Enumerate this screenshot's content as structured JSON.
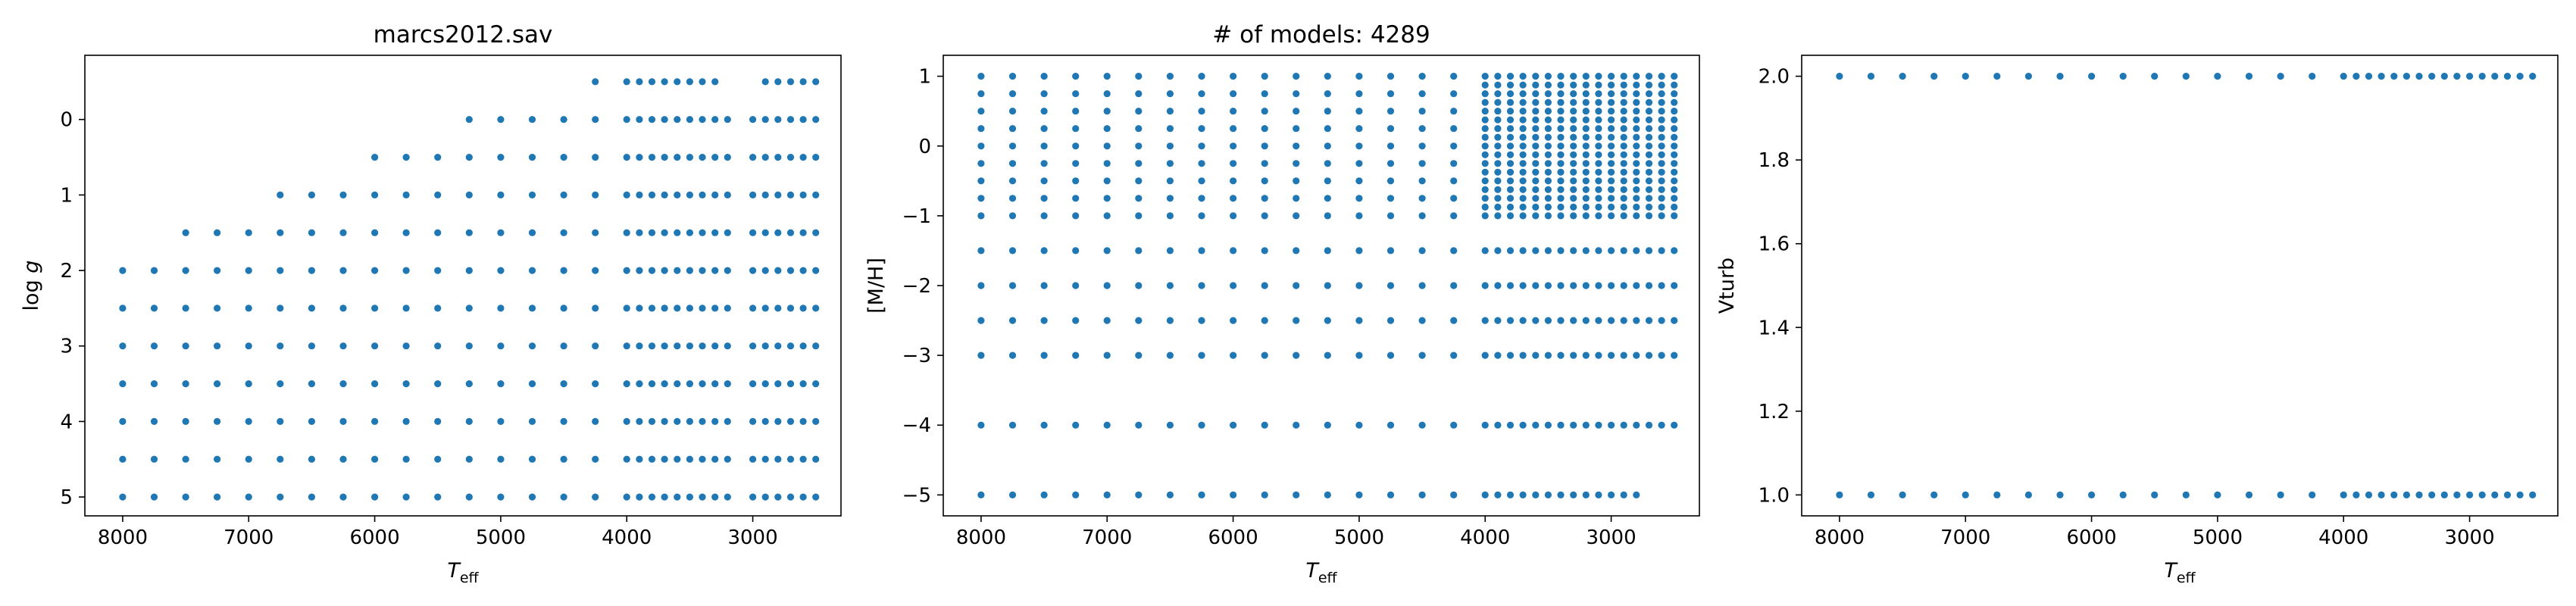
{
  "chart_data": [
    {
      "type": "scatter",
      "title": "marcs2012.sav",
      "xlabel": "T_eff",
      "ylabel": "log g",
      "x_axis_inverted": true,
      "y_axis_inverted": true,
      "xlim": [
        8300,
        2300
      ],
      "ylim": [
        5.25,
        -0.85
      ],
      "xticks": [
        8000,
        7000,
        6000,
        5000,
        4000,
        3000
      ],
      "xtick_labels": [
        "8000",
        "7000",
        "6000",
        "5000",
        "4000",
        "3000"
      ],
      "yticks": [
        0,
        1,
        2,
        3,
        4,
        5
      ],
      "ytick_labels": [
        "0",
        "1",
        "2",
        "3",
        "4",
        "5"
      ],
      "color": "#1f77b4",
      "series": [
        {
          "x": 8000,
          "y": [
            2,
            2.5,
            3,
            3.5,
            4,
            4.5,
            5
          ]
        },
        {
          "x": 7750,
          "y": [
            2,
            2.5,
            3,
            3.5,
            4,
            4.5,
            5
          ]
        },
        {
          "x": 7500,
          "y": [
            1.5,
            2,
            2.5,
            3,
            3.5,
            4,
            4.5,
            5
          ]
        },
        {
          "x": 7250,
          "y": [
            1.5,
            2,
            2.5,
            3,
            3.5,
            4,
            4.5,
            5
          ]
        },
        {
          "x": 7000,
          "y": [
            1.5,
            2,
            2.5,
            3,
            3.5,
            4,
            4.5,
            5
          ]
        },
        {
          "x": 6750,
          "y": [
            1,
            1.5,
            2,
            2.5,
            3,
            3.5,
            4,
            4.5,
            5
          ]
        },
        {
          "x": 6500,
          "y": [
            1,
            1.5,
            2,
            2.5,
            3,
            3.5,
            4,
            4.5,
            5
          ]
        },
        {
          "x": 6250,
          "y": [
            1,
            1.5,
            2,
            2.5,
            3,
            3.5,
            4,
            4.5,
            5
          ]
        },
        {
          "x": 6000,
          "y": [
            0.5,
            1,
            1.5,
            2,
            2.5,
            3,
            3.5,
            4,
            4.5,
            5
          ]
        },
        {
          "x": 5750,
          "y": [
            0.5,
            1,
            1.5,
            2,
            2.5,
            3,
            3.5,
            4,
            4.5,
            5
          ]
        },
        {
          "x": 5500,
          "y": [
            0.5,
            1,
            1.5,
            2,
            2.5,
            3,
            3.5,
            4,
            4.5,
            5
          ]
        },
        {
          "x": 5250,
          "y": [
            0,
            0.5,
            1,
            1.5,
            2,
            2.5,
            3,
            3.5,
            4,
            4.5,
            5
          ]
        },
        {
          "x": 5000,
          "y": [
            0,
            0.5,
            1,
            1.5,
            2,
            2.5,
            3,
            3.5,
            4,
            4.5,
            5
          ]
        },
        {
          "x": 4750,
          "y": [
            0,
            0.5,
            1,
            1.5,
            2,
            2.5,
            3,
            3.5,
            4,
            4.5,
            5
          ]
        },
        {
          "x": 4500,
          "y": [
            0,
            0.5,
            1,
            1.5,
            2,
            2.5,
            3,
            3.5,
            4,
            4.5,
            5
          ]
        },
        {
          "x": 4250,
          "y": [
            -0.5,
            0,
            0.5,
            1,
            1.5,
            2,
            2.5,
            3,
            3.5,
            4,
            4.5,
            5
          ]
        },
        {
          "x": 4000,
          "y": [
            -0.5,
            0,
            0.5,
            1,
            1.5,
            2,
            2.5,
            3,
            3.5,
            4,
            4.5,
            5
          ]
        },
        {
          "x": 3900,
          "y": [
            -0.5,
            0,
            0.5,
            1,
            1.5,
            2,
            2.5,
            3,
            3.5,
            4,
            4.5,
            5
          ]
        },
        {
          "x": 3800,
          "y": [
            -0.5,
            0,
            0.5,
            1,
            1.5,
            2,
            2.5,
            3,
            3.5,
            4,
            4.5,
            5
          ]
        },
        {
          "x": 3700,
          "y": [
            -0.5,
            0,
            0.5,
            1,
            1.5,
            2,
            2.5,
            3,
            3.5,
            4,
            4.5,
            5
          ]
        },
        {
          "x": 3600,
          "y": [
            -0.5,
            0,
            0.5,
            1,
            1.5,
            2,
            2.5,
            3,
            3.5,
            4,
            4.5,
            5
          ]
        },
        {
          "x": 3500,
          "y": [
            -0.5,
            0,
            0.5,
            1,
            1.5,
            2,
            2.5,
            3,
            3.5,
            4,
            4.5,
            5
          ]
        },
        {
          "x": 3400,
          "y": [
            -0.5,
            0,
            0.5,
            1,
            1.5,
            2,
            2.5,
            3,
            3.5,
            4,
            4.5,
            5
          ]
        },
        {
          "x": 3300,
          "y": [
            -0.5,
            0,
            0.5,
            1,
            1.5,
            2,
            2.5,
            3,
            3.5,
            4,
            4.5,
            5
          ]
        },
        {
          "x": 3200,
          "y": [
            0,
            0.5,
            1,
            1.5,
            2,
            2.5,
            3,
            3.5,
            4,
            4.5,
            5
          ]
        },
        {
          "x": 3000,
          "y": [
            0,
            0.5,
            1,
            1.5,
            2,
            2.5,
            3,
            3.5,
            4,
            4.5,
            5
          ]
        },
        {
          "x": 2900,
          "y": [
            -0.5,
            0,
            0.5,
            1,
            1.5,
            2,
            2.5,
            3,
            3.5,
            4,
            4.5,
            5
          ]
        },
        {
          "x": 2800,
          "y": [
            -0.5,
            0,
            0.5,
            1,
            1.5,
            2,
            2.5,
            3,
            3.5,
            4,
            4.5,
            5
          ]
        },
        {
          "x": 2700,
          "y": [
            -0.5,
            0,
            0.5,
            1,
            1.5,
            2,
            2.5,
            3,
            3.5,
            4,
            4.5,
            5
          ]
        },
        {
          "x": 2600,
          "y": [
            -0.5,
            0,
            0.5,
            1,
            1.5,
            2,
            2.5,
            3,
            3.5,
            4,
            4.5,
            5
          ]
        },
        {
          "x": 2500,
          "y": [
            -0.5,
            0,
            0.5,
            1,
            1.5,
            2,
            2.5,
            3,
            3.5,
            4,
            4.5,
            5
          ]
        }
      ]
    },
    {
      "type": "scatter",
      "title": "# of models: 4289",
      "xlabel": "T_eff",
      "ylabel": "[M/H]",
      "x_axis_inverted": true,
      "xlim": [
        8300,
        2300
      ],
      "ylim": [
        -5.3,
        1.3
      ],
      "xticks": [
        8000,
        7000,
        6000,
        5000,
        4000,
        3000
      ],
      "xtick_labels": [
        "8000",
        "7000",
        "6000",
        "5000",
        "4000",
        "3000"
      ],
      "yticks": [
        1,
        0,
        -1,
        -2,
        -3,
        -4,
        -5
      ],
      "ytick_labels": [
        "1",
        "0",
        "−1",
        "−2",
        "−3",
        "−4",
        "−5"
      ],
      "color": "#1f77b4",
      "x_values": [
        8000,
        7750,
        7500,
        7250,
        7000,
        6750,
        6500,
        6250,
        6000,
        5750,
        5500,
        5250,
        5000,
        4750,
        4500,
        4250,
        4000,
        3900,
        3800,
        3700,
        3600,
        3500,
        3400,
        3300,
        3200,
        3100,
        3000,
        2900,
        2800,
        2700,
        2600,
        2500
      ],
      "coarse_x_max": 4250,
      "coarse_mh": [
        1,
        0.75,
        0.5,
        0.25,
        0,
        -0.25,
        -0.5,
        -0.75,
        -1,
        -1.5,
        -2,
        -2.5,
        -3,
        -4,
        -5
      ],
      "fine_mh": [
        1,
        0.75,
        0.5,
        0.25,
        0,
        -0.25,
        -0.5,
        -0.75,
        -1,
        -1.5,
        -2,
        -2.5,
        -3,
        -4
      ],
      "fine_extra_mh": [
        0.875,
        0.625,
        0.375,
        0.125,
        -0.125,
        -0.375,
        -0.625,
        -0.875
      ],
      "mh_minus5_x": [
        4000,
        3900,
        3800,
        3700,
        3600,
        3500,
        3400,
        3300,
        3200,
        3100,
        3000,
        2900,
        2800
      ]
    },
    {
      "type": "scatter",
      "title": "",
      "xlabel": "T_eff",
      "ylabel": "Vturb",
      "x_axis_inverted": true,
      "xlim": [
        8300,
        2300
      ],
      "ylim": [
        0.95,
        2.05
      ],
      "xticks": [
        8000,
        7000,
        6000,
        5000,
        4000,
        3000
      ],
      "xtick_labels": [
        "8000",
        "7000",
        "6000",
        "5000",
        "4000",
        "3000"
      ],
      "yticks": [
        1.0,
        1.2,
        1.4,
        1.6,
        1.8,
        2.0
      ],
      "ytick_labels": [
        "1.0",
        "1.2",
        "1.4",
        "1.6",
        "1.8",
        "2.0"
      ],
      "color": "#1f77b4",
      "x_values": [
        8000,
        7750,
        7500,
        7250,
        7000,
        6750,
        6500,
        6250,
        6000,
        5750,
        5500,
        5250,
        5000,
        4750,
        4500,
        4250,
        4000,
        3900,
        3800,
        3700,
        3600,
        3500,
        3400,
        3300,
        3200,
        3100,
        3000,
        2900,
        2800,
        2700,
        2600,
        2500
      ],
      "vturb_values": [
        1.0,
        2.0
      ]
    }
  ]
}
